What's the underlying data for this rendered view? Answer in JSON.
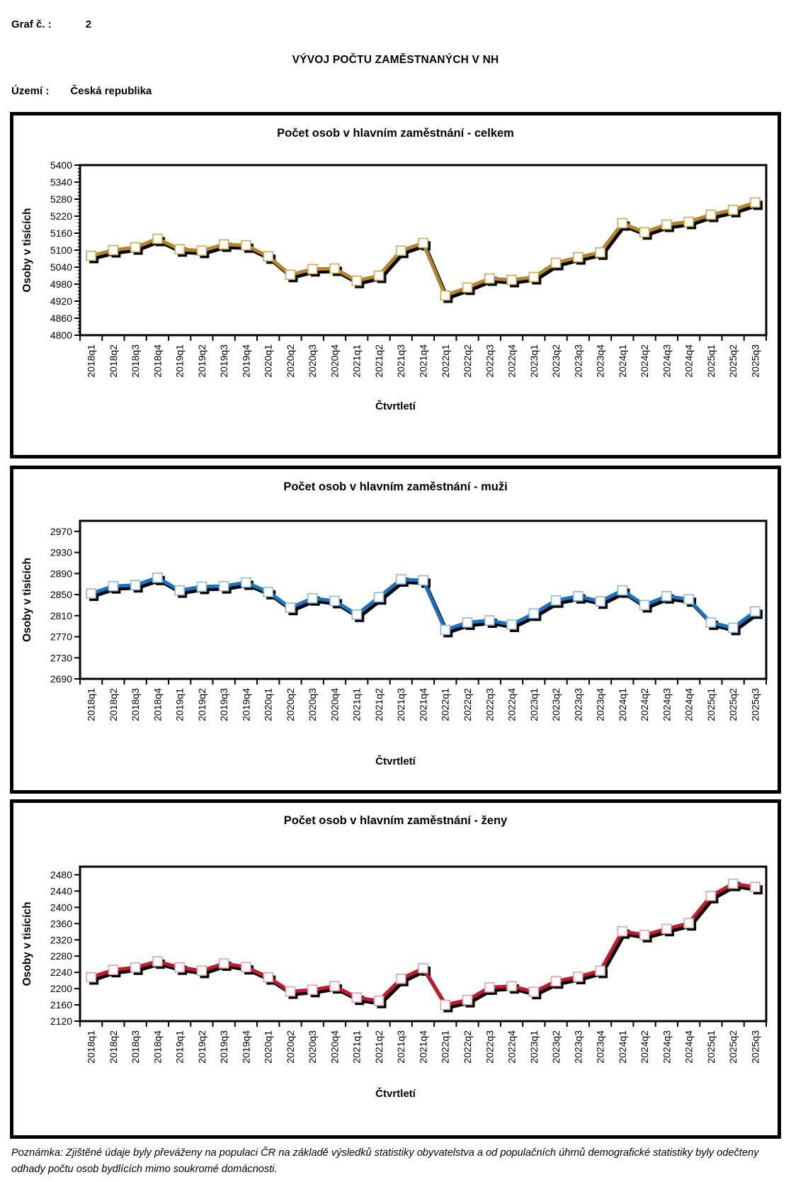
{
  "header": {
    "graf_label": "Graf č. :",
    "graf_number": "2",
    "title": "VÝVOJ POČTU ZAMĚSTNANÝCH V NH",
    "uzemi_label": "Území :",
    "uzemi_value": "Česká republika"
  },
  "footer": {
    "note": "Poznámka: Zjištěné údaje byly převáženy na populaci ČR na základě výsledků statistiky obyvatelstva a od populačních úhrnů demografické statistiky byly odečteny odhady počtu osob bydlících mimo soukromé domácnosti."
  },
  "chart_data": [
    {
      "type": "line",
      "title": "Počet osob v hlavním zaměstnání - celkem",
      "ylabel": "Osoby v tisících",
      "xlabel": "Čtvrtletí",
      "legend": "none",
      "grid": false,
      "categories": [
        "2018q1",
        "2018q2",
        "2018q3",
        "2018q4",
        "2019q1",
        "2019q2",
        "2019q3",
        "2019q4",
        "2020q1",
        "2020q2",
        "2020q3",
        "2020q4",
        "2021q1",
        "2021q2",
        "2021q3",
        "2021q4",
        "2022q1",
        "2022q2",
        "2022q3",
        "2022q4",
        "2023q1",
        "2023q2",
        "2023q3",
        "2023q4",
        "2024q1",
        "2024q2",
        "2024q3",
        "2024q4",
        "2025q1",
        "2025q2",
        "2025q3"
      ],
      "values": [
        5080,
        5100,
        5110,
        5140,
        5103,
        5098,
        5120,
        5117,
        5078,
        5013,
        5033,
        5035,
        4992,
        5010,
        5098,
        5125,
        4940,
        4968,
        5000,
        4995,
        5005,
        5055,
        5075,
        5092,
        5195,
        5163,
        5190,
        5200,
        5225,
        5242,
        5268
      ],
      "y_axis": {
        "min": 4800,
        "tick_max": 5400,
        "step": 60,
        "frame_max": 5400,
        "minor_step": 12
      },
      "colors": {
        "line": "#b3862b",
        "marker_border": "#c9a959",
        "marker_fill": "#fffef9",
        "shadow": "#000000"
      }
    },
    {
      "type": "line",
      "title": "Počet osob v hlavním zaměstnání - muži",
      "ylabel": "Osoby v tisících",
      "xlabel": "Čtvrtletí",
      "legend": "none",
      "grid": false,
      "categories": [
        "2018q1",
        "2018q2",
        "2018q3",
        "2018q4",
        "2019q1",
        "2019q2",
        "2019q3",
        "2019q4",
        "2020q1",
        "2020q2",
        "2020q3",
        "2020q4",
        "2021q1",
        "2021q2",
        "2021q3",
        "2021q4",
        "2022q1",
        "2022q2",
        "2022q3",
        "2022q4",
        "2023q1",
        "2023q2",
        "2023q3",
        "2023q4",
        "2024q1",
        "2024q2",
        "2024q3",
        "2024q4",
        "2025q1",
        "2025q2",
        "2025q3"
      ],
      "values": [
        2852,
        2866,
        2868,
        2882,
        2858,
        2865,
        2866,
        2873,
        2855,
        2825,
        2843,
        2838,
        2812,
        2845,
        2879,
        2877,
        2783,
        2797,
        2801,
        2793,
        2814,
        2839,
        2847,
        2837,
        2858,
        2830,
        2847,
        2841,
        2797,
        2787,
        2818
      ],
      "y_axis": {
        "min": 2690,
        "tick_max": 2970,
        "step": 40,
        "frame_max": 2990,
        "minor_step": 0
      },
      "colors": {
        "line": "#1b72be",
        "marker_border": "#8fb8d8",
        "marker_fill": "#ffffff",
        "shadow": "#000000"
      }
    },
    {
      "type": "line",
      "title": "Počet osob v hlavním zaměstnání - ženy",
      "ylabel": "Osoby v tisících",
      "xlabel": "Čtvrtletí",
      "legend": "none",
      "grid": false,
      "categories": [
        "2018q1",
        "2018q2",
        "2018q3",
        "2018q4",
        "2019q1",
        "2019q2",
        "2019q3",
        "2019q4",
        "2020q1",
        "2020q2",
        "2020q3",
        "2020q4",
        "2021q1",
        "2021q2",
        "2021q3",
        "2021q4",
        "2022q1",
        "2022q2",
        "2022q3",
        "2022q4",
        "2023q1",
        "2023q2",
        "2023q3",
        "2023q4",
        "2024q1",
        "2024q2",
        "2024q3",
        "2024q4",
        "2025q1",
        "2025q2",
        "2025q3"
      ],
      "values": [
        2228,
        2246,
        2252,
        2267,
        2252,
        2244,
        2262,
        2253,
        2228,
        2193,
        2197,
        2206,
        2178,
        2170,
        2224,
        2250,
        2160,
        2172,
        2203,
        2206,
        2192,
        2218,
        2229,
        2244,
        2341,
        2332,
        2347,
        2361,
        2428,
        2458,
        2450
      ],
      "y_axis": {
        "min": 2120,
        "tick_max": 2480,
        "step": 40,
        "frame_max": 2500,
        "minor_step": 0
      },
      "colors": {
        "line": "#c11b32",
        "marker_border": "#dfa0ac",
        "marker_fill": "#ffffff",
        "shadow": "#000000"
      }
    }
  ]
}
